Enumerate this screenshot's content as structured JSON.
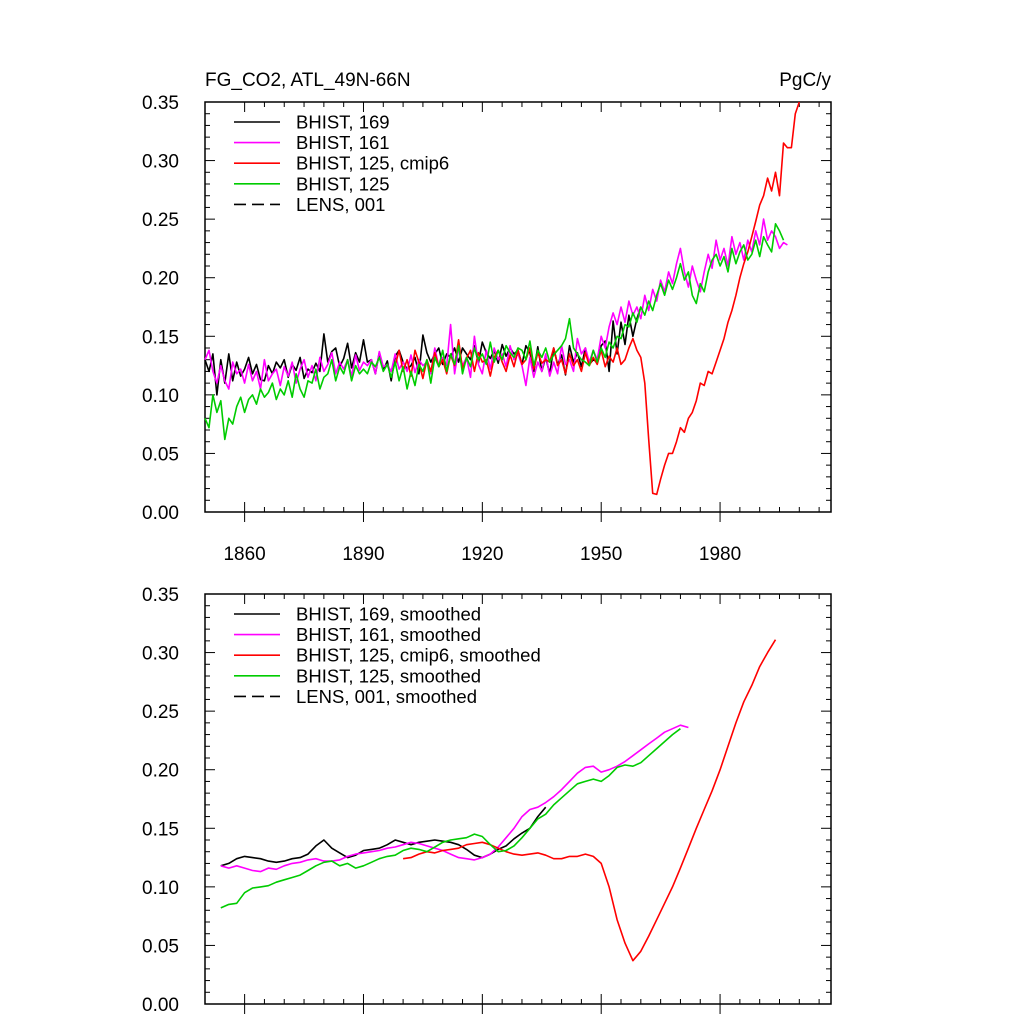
{
  "figure": {
    "title_left": "FG_CO2, ATL_49N-66N",
    "title_right": "PgC/y"
  },
  "chart_data": [
    {
      "type": "line",
      "title": "FG_CO2, ATL_49N-66N",
      "unit_label": "PgC/y",
      "xlim": [
        1850,
        2008
      ],
      "ylim": [
        0,
        0.35
      ],
      "x_ticks": [
        1860,
        1890,
        1920,
        1950,
        1980
      ],
      "y_ticks": [
        "0.00",
        "0.05",
        "0.10",
        "0.15",
        "0.20",
        "0.25",
        "0.30",
        "0.35"
      ],
      "legend_position": "top-left",
      "grid": false,
      "series": [
        {
          "name": "BHIST, 169",
          "color": "#000000",
          "dash": "solid",
          "x_start": 1850,
          "x_step": 1,
          "values": [
            0.13,
            0.12,
            0.135,
            0.1,
            0.13,
            0.11,
            0.135,
            0.112,
            0.128,
            0.116,
            0.122,
            0.132,
            0.118,
            0.126,
            0.113,
            0.112,
            0.125,
            0.118,
            0.128,
            0.123,
            0.13,
            0.115,
            0.126,
            0.121,
            0.132,
            0.114,
            0.122,
            0.119,
            0.127,
            0.12,
            0.152,
            0.128,
            0.137,
            0.14,
            0.124,
            0.131,
            0.144,
            0.123,
            0.136,
            0.128,
            0.147,
            0.128,
            0.13,
            0.118,
            0.136,
            0.121,
            0.129,
            0.112,
            0.133,
            0.138,
            0.128,
            0.122,
            0.125,
            0.132,
            0.118,
            0.151,
            0.136,
            0.128,
            0.135,
            0.14,
            0.126,
            0.135,
            0.132,
            0.14,
            0.128,
            0.14,
            0.135,
            0.13,
            0.142,
            0.127,
            0.145,
            0.136,
            0.131,
            0.138,
            0.127,
            0.143,
            0.133,
            0.14,
            0.135,
            0.138,
            0.126,
            0.142,
            0.136,
            0.12,
            0.141,
            0.12,
            0.132,
            0.118,
            0.14,
            0.126,
            0.134,
            0.117,
            0.142,
            0.128,
            0.136,
            0.124,
            0.14,
            0.126,
            0.13,
            0.128,
            0.142,
            0.146,
            0.12,
            0.163,
            0.135,
            0.162,
            0.143,
            0.168,
            0.15,
            0.165,
            0.175
          ]
        },
        {
          "name": "BHIST, 161",
          "color": "#ff00ff",
          "dash": "solid",
          "x_start": 1850,
          "x_step": 1,
          "values": [
            0.13,
            0.138,
            0.12,
            0.11,
            0.125,
            0.112,
            0.105,
            0.128,
            0.118,
            0.122,
            0.11,
            0.126,
            0.112,
            0.12,
            0.105,
            0.13,
            0.112,
            0.118,
            0.122,
            0.108,
            0.124,
            0.116,
            0.128,
            0.11,
            0.122,
            0.13,
            0.115,
            0.125,
            0.112,
            0.132,
            0.12,
            0.126,
            0.136,
            0.118,
            0.128,
            0.122,
            0.13,
            0.116,
            0.134,
            0.121,
            0.128,
            0.125,
            0.13,
            0.118,
            0.137,
            0.124,
            0.126,
            0.12,
            0.135,
            0.122,
            0.128,
            0.12,
            0.134,
            0.119,
            0.13,
            0.125,
            0.128,
            0.118,
            0.14,
            0.124,
            0.132,
            0.125,
            0.16,
            0.118,
            0.14,
            0.125,
            0.132,
            0.115,
            0.15,
            0.126,
            0.118,
            0.138,
            0.122,
            0.14,
            0.13,
            0.135,
            0.124,
            0.142,
            0.13,
            0.135,
            0.125,
            0.108,
            0.132,
            0.115,
            0.128,
            0.12,
            0.135,
            0.116,
            0.128,
            0.118,
            0.142,
            0.126,
            0.13,
            0.12,
            0.148,
            0.135,
            0.14,
            0.128,
            0.138,
            0.13,
            0.15,
            0.14,
            0.158,
            0.17,
            0.16,
            0.175,
            0.162,
            0.18,
            0.168,
            0.175,
            0.165,
            0.185,
            0.172,
            0.19,
            0.18,
            0.198,
            0.188,
            0.205,
            0.195,
            0.212,
            0.225,
            0.205,
            0.192,
            0.21,
            0.198,
            0.188,
            0.205,
            0.22,
            0.208,
            0.232,
            0.215,
            0.225,
            0.21,
            0.235,
            0.22,
            0.23,
            0.215,
            0.232,
            0.222,
            0.24,
            0.228,
            0.25,
            0.232,
            0.24,
            0.235,
            0.225,
            0.23,
            0.228
          ]
        },
        {
          "name": "BHIST, 125, cmip6",
          "color": "#ff0000",
          "dash": "solid",
          "x_start": 1898,
          "x_step": 1,
          "values": [
            0.125,
            0.138,
            0.12,
            0.13,
            0.116,
            0.138,
            0.128,
            0.114,
            0.13,
            0.12,
            0.136,
            0.124,
            0.13,
            0.118,
            0.134,
            0.125,
            0.147,
            0.122,
            0.131,
            0.138,
            0.12,
            0.136,
            0.128,
            0.13,
            0.116,
            0.132,
            0.138,
            0.128,
            0.12,
            0.134,
            0.124,
            0.138,
            0.126,
            0.13,
            0.14,
            0.122,
            0.136,
            0.127,
            0.13,
            0.128,
            0.14,
            0.125,
            0.13,
            0.118,
            0.135,
            0.125,
            0.13,
            0.12,
            0.136,
            0.125,
            0.132,
            0.126,
            0.138,
            0.124,
            0.133,
            0.128,
            0.14,
            0.126,
            0.13,
            0.14,
            0.148,
            0.138,
            0.132,
            0.11,
            0.062,
            0.016,
            0.015,
            0.028,
            0.04,
            0.05,
            0.05,
            0.06,
            0.072,
            0.068,
            0.08,
            0.085,
            0.095,
            0.11,
            0.108,
            0.12,
            0.118,
            0.128,
            0.138,
            0.148,
            0.162,
            0.172,
            0.185,
            0.2,
            0.212,
            0.222,
            0.235,
            0.248,
            0.262,
            0.27,
            0.285,
            0.274,
            0.29,
            0.27,
            0.315,
            0.311,
            0.311,
            0.34,
            0.35
          ]
        },
        {
          "name": "BHIST, 125",
          "color": "#00cc00",
          "dash": "solid",
          "x_start": 1850,
          "x_step": 1,
          "values": [
            0.08,
            0.072,
            0.1,
            0.085,
            0.095,
            0.062,
            0.08,
            0.075,
            0.09,
            0.098,
            0.085,
            0.096,
            0.1,
            0.092,
            0.105,
            0.098,
            0.102,
            0.11,
            0.096,
            0.105,
            0.1,
            0.112,
            0.098,
            0.118,
            0.105,
            0.098,
            0.112,
            0.11,
            0.122,
            0.105,
            0.115,
            0.118,
            0.13,
            0.112,
            0.124,
            0.118,
            0.13,
            0.112,
            0.125,
            0.118,
            0.122,
            0.118,
            0.128,
            0.124,
            0.132,
            0.12,
            0.126,
            0.115,
            0.128,
            0.112,
            0.124,
            0.105,
            0.12,
            0.108,
            0.126,
            0.12,
            0.13,
            0.11,
            0.132,
            0.124,
            0.138,
            0.12,
            0.135,
            0.126,
            0.142,
            0.118,
            0.132,
            0.124,
            0.14,
            0.13,
            0.135,
            0.126,
            0.145,
            0.128,
            0.138,
            0.13,
            0.142,
            0.136,
            0.132,
            0.14,
            0.138,
            0.13,
            0.146,
            0.125,
            0.138,
            0.132,
            0.14,
            0.128,
            0.134,
            0.138,
            0.142,
            0.148,
            0.165,
            0.14,
            0.135,
            0.13,
            0.128,
            0.125,
            0.138,
            0.128,
            0.14,
            0.132,
            0.145,
            0.14,
            0.15,
            0.148,
            0.16,
            0.158,
            0.17,
            0.162,
            0.175,
            0.168,
            0.18,
            0.172,
            0.185,
            0.195,
            0.185,
            0.198,
            0.19,
            0.2,
            0.212,
            0.198,
            0.205,
            0.185,
            0.178,
            0.195,
            0.188,
            0.205,
            0.215,
            0.22,
            0.21,
            0.218,
            0.205,
            0.225,
            0.212,
            0.222,
            0.228,
            0.215,
            0.22,
            0.232,
            0.218,
            0.235,
            0.228,
            0.222,
            0.246,
            0.24,
            0.232
          ]
        },
        {
          "name": "LENS, 001",
          "color": "#000000",
          "dash": "dashed",
          "values": []
        }
      ]
    },
    {
      "type": "line",
      "xlim": [
        1850,
        2008
      ],
      "ylim": [
        0,
        0.35
      ],
      "x_ticks": [],
      "y_ticks": [
        "0.00",
        "0.05",
        "0.10",
        "0.15",
        "0.20",
        "0.25",
        "0.30",
        "0.35"
      ],
      "legend_position": "top-left",
      "grid": false,
      "series": [
        {
          "name": "BHIST, 169, smoothed",
          "color": "#000000",
          "dash": "solid",
          "x_start": 1854,
          "x_step": 2,
          "values": [
            0.118,
            0.12,
            0.124,
            0.126,
            0.125,
            0.124,
            0.122,
            0.121,
            0.122,
            0.124,
            0.125,
            0.128,
            0.135,
            0.14,
            0.133,
            0.129,
            0.125,
            0.127,
            0.131,
            0.132,
            0.133,
            0.136,
            0.14,
            0.138,
            0.136,
            0.138,
            0.139,
            0.14,
            0.139,
            0.138,
            0.136,
            0.132,
            0.127,
            0.125,
            0.128,
            0.132,
            0.135,
            0.141,
            0.146,
            0.15,
            0.16,
            0.168
          ]
        },
        {
          "name": "BHIST, 161, smoothed",
          "color": "#ff00ff",
          "dash": "solid",
          "x_start": 1854,
          "x_step": 2,
          "values": [
            0.118,
            0.116,
            0.118,
            0.116,
            0.114,
            0.113,
            0.116,
            0.115,
            0.118,
            0.12,
            0.121,
            0.123,
            0.124,
            0.122,
            0.122,
            0.123,
            0.126,
            0.128,
            0.129,
            0.13,
            0.131,
            0.133,
            0.134,
            0.136,
            0.138,
            0.137,
            0.135,
            0.133,
            0.131,
            0.128,
            0.125,
            0.124,
            0.123,
            0.125,
            0.128,
            0.134,
            0.142,
            0.15,
            0.16,
            0.166,
            0.168,
            0.172,
            0.177,
            0.183,
            0.19,
            0.197,
            0.202,
            0.203,
            0.198,
            0.2,
            0.203,
            0.207,
            0.212,
            0.217,
            0.222,
            0.227,
            0.232,
            0.235,
            0.238,
            0.236
          ]
        },
        {
          "name": "BHIST, 125, cmip6, smoothed",
          "color": "#ff0000",
          "dash": "solid",
          "x_start": 1900,
          "x_step": 2,
          "values": [
            0.124,
            0.125,
            0.128,
            0.13,
            0.129,
            0.131,
            0.132,
            0.133,
            0.136,
            0.137,
            0.138,
            0.136,
            0.133,
            0.13,
            0.128,
            0.127,
            0.128,
            0.129,
            0.127,
            0.124,
            0.124,
            0.126,
            0.126,
            0.128,
            0.126,
            0.12,
            0.1,
            0.072,
            0.052,
            0.037,
            0.045,
            0.058,
            0.072,
            0.086,
            0.1,
            0.116,
            0.133,
            0.15,
            0.166,
            0.182,
            0.2,
            0.22,
            0.24,
            0.258,
            0.272,
            0.288,
            0.3,
            0.311
          ]
        },
        {
          "name": "BHIST, 125, smoothed",
          "color": "#00cc00",
          "dash": "solid",
          "x_start": 1854,
          "x_step": 2,
          "values": [
            0.082,
            0.085,
            0.086,
            0.095,
            0.099,
            0.1,
            0.101,
            0.104,
            0.106,
            0.108,
            0.11,
            0.114,
            0.118,
            0.121,
            0.122,
            0.118,
            0.12,
            0.116,
            0.118,
            0.121,
            0.124,
            0.126,
            0.127,
            0.131,
            0.133,
            0.132,
            0.13,
            0.134,
            0.138,
            0.14,
            0.141,
            0.142,
            0.145,
            0.143,
            0.136,
            0.13,
            0.131,
            0.135,
            0.142,
            0.15,
            0.158,
            0.162,
            0.17,
            0.176,
            0.182,
            0.188,
            0.19,
            0.192,
            0.19,
            0.195,
            0.202,
            0.204,
            0.203,
            0.206,
            0.212,
            0.218,
            0.224,
            0.23,
            0.235
          ]
        },
        {
          "name": "LENS, 001, smoothed",
          "color": "#000000",
          "dash": "dashed",
          "values": []
        }
      ]
    }
  ]
}
